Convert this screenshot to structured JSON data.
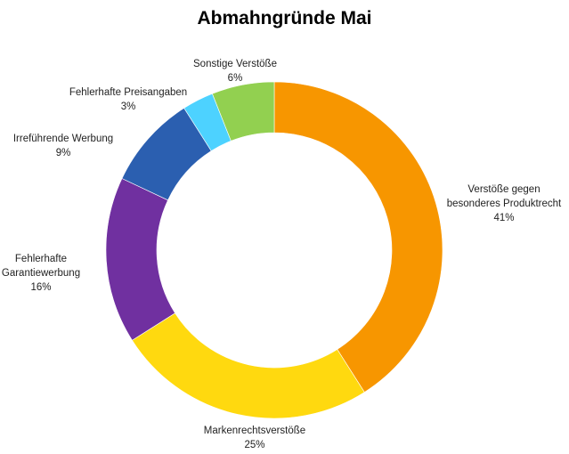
{
  "chart_data": {
    "type": "pie",
    "variant": "donut",
    "title": "Abmahngründe Mai",
    "slices": [
      {
        "label": "Verstöße gegen besonderes Produktrecht",
        "label_lines": [
          "Verstöße gegen",
          "besonderes Produktrecht"
        ],
        "value": 41,
        "pct_label": "41%",
        "color": "#F79600"
      },
      {
        "label": "Markenrechtsverstöße",
        "label_lines": [
          "Markenrechtsverstöße"
        ],
        "value": 25,
        "pct_label": "25%",
        "color": "#FFD90F"
      },
      {
        "label": "Fehlerhafte Garantiewerbung",
        "label_lines": [
          "Fehlerhafte",
          "Garantiewerbung"
        ],
        "value": 16,
        "pct_label": "16%",
        "color": "#7030A0"
      },
      {
        "label": "Irreführende Werbung",
        "label_lines": [
          "Irreführende Werbung"
        ],
        "value": 9,
        "pct_label": "9%",
        "color": "#2B5FB0"
      },
      {
        "label": "Fehlerhafte Preisangaben",
        "label_lines": [
          "Fehlerhafte Preisangaben"
        ],
        "value": 3,
        "pct_label": "3%",
        "color": "#4DD2FF"
      },
      {
        "label": "Sonstige Verstöße",
        "label_lines": [
          "Sonstige Verstöße"
        ],
        "value": 6,
        "pct_label": "6%",
        "color": "#92D050"
      }
    ],
    "legend": "none",
    "data_labels": "outside"
  }
}
